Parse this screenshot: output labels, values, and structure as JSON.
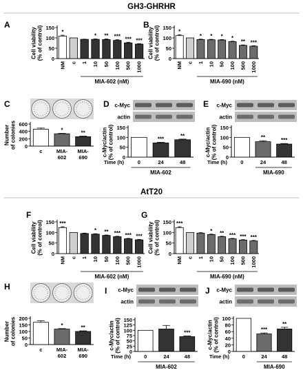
{
  "sections": {
    "top": "GH3-GHRHR",
    "bottom": "AtT20"
  },
  "colors": {
    "white_bar": "#ffffff",
    "light_bar": "#cfcfcf",
    "dark_bar": "#333333",
    "mid_bar": "#6b6b6b",
    "blot_band": "#4a4a4a",
    "blot_bg": "#bdbdbd"
  },
  "chart_data": [
    {
      "panel": "A",
      "type": "bar",
      "ylabel": "Cell viability\n(% of control)",
      "ylim": [
        0,
        150
      ],
      "yticks": [
        0,
        50,
        100,
        150
      ],
      "categories": [
        "NM",
        "c",
        "1",
        "10",
        "50",
        "100",
        "500",
        "1000"
      ],
      "values": [
        109,
        100,
        93,
        93,
        92,
        88,
        76,
        70
      ],
      "errors": [
        4,
        0,
        1,
        2,
        3,
        3,
        3,
        2
      ],
      "sig": [
        "*",
        "",
        "",
        "*",
        "**",
        "***",
        "***",
        "***"
      ],
      "xlabel": "MIA-602 (nM)",
      "xlabel_range": [
        2,
        7
      ]
    },
    {
      "panel": "B",
      "type": "bar",
      "ylabel": "Cell viability\n(% of control)",
      "ylim": [
        0,
        150
      ],
      "yticks": [
        0,
        50,
        100,
        150
      ],
      "categories": [
        "NM",
        "c",
        "1",
        "10",
        "50",
        "100",
        "500",
        "1000"
      ],
      "values": [
        111,
        100,
        92,
        91,
        90,
        82,
        64,
        60
      ],
      "errors": [
        4,
        0,
        2,
        2,
        2,
        2,
        2,
        2
      ],
      "sig": [
        "*",
        "",
        "*",
        "*",
        "*",
        "*",
        "**",
        "***"
      ],
      "xlabel": "MIA-690 (nM)",
      "xlabel_range": [
        2,
        7
      ]
    },
    {
      "panel": "C",
      "type": "bar",
      "ylabel": "Number\nof colonies",
      "ylim": [
        0,
        600
      ],
      "yticks": [
        0,
        200,
        400,
        600
      ],
      "categories": [
        "c",
        "MIA-\n602",
        "MIA-\n690"
      ],
      "values": [
        460,
        335,
        255
      ],
      "errors": [
        30,
        12,
        15
      ],
      "sig": [
        "",
        "*",
        "**"
      ],
      "xlabel": "",
      "xlabel_range": null
    },
    {
      "panel": "D",
      "type": "bar",
      "ylabel": "c-Myc/actin\n(% of control)",
      "ylim": [
        0,
        150
      ],
      "yticks": [
        0,
        50,
        100,
        150
      ],
      "categories": [
        "0",
        "24",
        "48"
      ],
      "values": [
        100,
        72,
        88
      ],
      "errors": [
        0,
        3,
        3
      ],
      "sig": [
        "",
        "***",
        "**"
      ],
      "xprefix": "Time (h)",
      "xlabel": "MIA-602",
      "xlabel_range": [
        0,
        2
      ]
    },
    {
      "panel": "E",
      "type": "bar",
      "ylabel": "c-Myc/actin\n(% of control)",
      "ylim": [
        0,
        150
      ],
      "yticks": [
        0,
        50,
        100,
        150
      ],
      "categories": [
        "0",
        "24",
        "48"
      ],
      "values": [
        100,
        78,
        66
      ],
      "errors": [
        0,
        5,
        3
      ],
      "sig": [
        "",
        "**",
        "***"
      ],
      "xprefix": "Time (h)",
      "xlabel": "MIA-690",
      "xlabel_range": [
        1,
        2
      ]
    },
    {
      "panel": "F",
      "type": "bar",
      "ylabel": "Cell viability\n(% of control)",
      "ylim": [
        0,
        150
      ],
      "yticks": [
        0,
        50,
        100,
        150
      ],
      "categories": [
        "NM",
        "c",
        "1",
        "10",
        "50",
        "100",
        "500",
        "1000"
      ],
      "values": [
        123,
        100,
        95,
        92,
        86,
        80,
        70,
        65
      ],
      "errors": [
        4,
        0,
        2,
        2,
        2,
        2,
        2,
        2
      ],
      "sig": [
        "***",
        "",
        "",
        "*",
        "**",
        "***",
        "***",
        "***"
      ],
      "xlabel": "MIA-602 (nM)",
      "xlabel_range": [
        2,
        7
      ]
    },
    {
      "panel": "G",
      "type": "bar",
      "ylabel": "Cell viability\n(% of control)",
      "ylim": [
        0,
        150
      ],
      "yticks": [
        0,
        50,
        100,
        150
      ],
      "categories": [
        "NM",
        "c",
        "1",
        "10",
        "50",
        "100",
        "500",
        "1000"
      ],
      "values": [
        123,
        100,
        97,
        90,
        80,
        70,
        64,
        60
      ],
      "errors": [
        4,
        0,
        2,
        2,
        2,
        2,
        2,
        2
      ],
      "sig": [
        "***",
        "",
        "",
        "*",
        "**",
        "***",
        "***",
        "***"
      ],
      "xlabel": "MIA-690 (nM)",
      "xlabel_range": [
        2,
        7
      ]
    },
    {
      "panel": "H",
      "type": "bar",
      "ylabel": "Number\nof colonies",
      "ylim": [
        0,
        200
      ],
      "yticks": [
        0,
        50,
        100,
        150,
        200
      ],
      "categories": [
        "c",
        "MIA-\n602",
        "MIA-\n690"
      ],
      "values": [
        170,
        118,
        100
      ],
      "errors": [
        12,
        4,
        5
      ],
      "sig": [
        "",
        "*",
        "**"
      ],
      "xlabel": "",
      "xlabel_range": null
    },
    {
      "panel": "I",
      "type": "bar",
      "ylabel": "c-Myc/actin\n(% of control)",
      "ylim": [
        0,
        150
      ],
      "yticks": [
        0,
        25,
        50,
        75,
        100,
        125,
        150
      ],
      "categories": [
        "0",
        "24",
        "48"
      ],
      "values": [
        100,
        106,
        70
      ],
      "errors": [
        0,
        17,
        3
      ],
      "sig": [
        "",
        "",
        "***"
      ],
      "xprefix": "Time (h)",
      "xlabel": "MIA-602",
      "xlabel_range": [
        0,
        2
      ]
    },
    {
      "panel": "J",
      "type": "bar",
      "ylabel": "c-Myc/actin\n(% of control)",
      "ylim": [
        0,
        100
      ],
      "yticks": [
        0,
        20,
        40,
        60,
        80,
        100
      ],
      "categories": [
        "0",
        "24",
        "48"
      ],
      "values": [
        100,
        53,
        68
      ],
      "errors": [
        0,
        3,
        5
      ],
      "sig": [
        "",
        "***",
        "**"
      ],
      "xprefix": "Time (h)",
      "xlabel": "MIA-690",
      "xlabel_range": [
        1,
        2
      ]
    }
  ],
  "blots": {
    "band_labels": [
      "c-Myc",
      "actin"
    ]
  }
}
